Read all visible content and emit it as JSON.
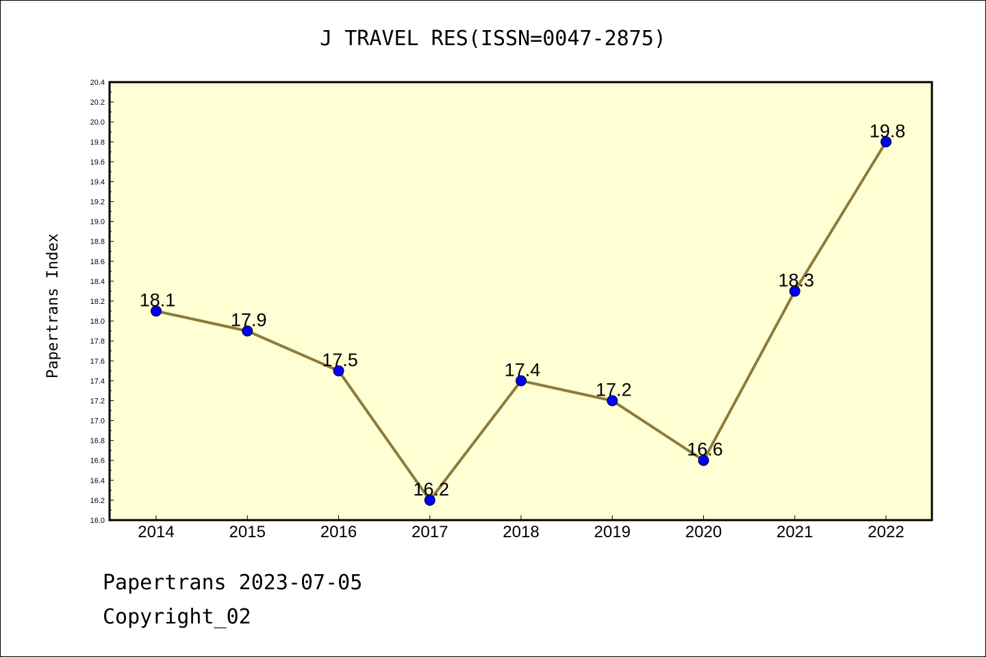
{
  "chart_data": {
    "type": "line",
    "title": "J TRAVEL RES(ISSN=0047-2875)",
    "ylabel": "Papertrans Index",
    "xlabel": "",
    "ylim": [
      16.0,
      20.4
    ],
    "yticks": [
      "16.0",
      "16.2",
      "16.4",
      "16.6",
      "16.8",
      "17.0",
      "17.2",
      "17.4",
      "17.6",
      "17.8",
      "18.0",
      "18.2",
      "18.4",
      "18.6",
      "18.8",
      "19.0",
      "19.2",
      "19.4",
      "19.6",
      "19.8",
      "20.0",
      "20.2",
      "20.4"
    ],
    "categories": [
      "2014",
      "2015",
      "2016",
      "2017",
      "2018",
      "2019",
      "2020",
      "2021",
      "2022"
    ],
    "values": [
      18.1,
      17.9,
      17.5,
      16.2,
      17.4,
      17.2,
      16.6,
      18.3,
      19.8
    ],
    "data_labels": [
      "18.1",
      "17.9",
      "17.5",
      "16.2",
      "17.4",
      "17.2",
      "16.6",
      "18.3",
      "19.8"
    ],
    "grid": false,
    "plot_background": "#ffffd4",
    "line_color": "#8c7b3a",
    "marker_color": "#0000ff"
  },
  "footer": {
    "line1": "Papertrans 2023-07-05",
    "line2": "Copyright_02"
  }
}
